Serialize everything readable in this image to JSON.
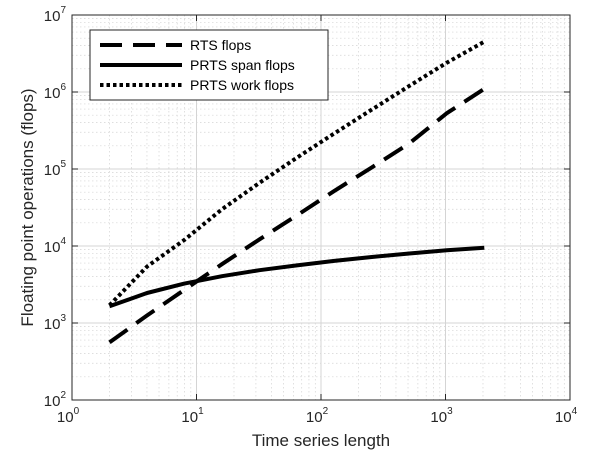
{
  "chart_data": {
    "type": "line",
    "xlabel": "Time series length",
    "ylabel": "Floating point operations (flops)",
    "xscale": "log",
    "yscale": "log",
    "xlim": [
      1,
      10000
    ],
    "ylim": [
      100,
      10000000
    ],
    "grid": true,
    "minor_grid": true,
    "legend_position": "top-left",
    "x_ticks": [
      {
        "base": "10",
        "exp": "0"
      },
      {
        "base": "10",
        "exp": "1"
      },
      {
        "base": "10",
        "exp": "2"
      },
      {
        "base": "10",
        "exp": "3"
      },
      {
        "base": "10",
        "exp": "4"
      }
    ],
    "y_ticks": [
      {
        "base": "10",
        "exp": "2"
      },
      {
        "base": "10",
        "exp": "3"
      },
      {
        "base": "10",
        "exp": "4"
      },
      {
        "base": "10",
        "exp": "5"
      },
      {
        "base": "10",
        "exp": "6"
      },
      {
        "base": "10",
        "exp": "7"
      }
    ],
    "series": [
      {
        "name": "RTS flops",
        "style": "dashed",
        "x": [
          2,
          4,
          8,
          16,
          32,
          64,
          128,
          256,
          512,
          1024,
          2048
        ],
        "y": [
          560,
          1250,
          2700,
          5800,
          12200,
          25000,
          52000,
          105000,
          215000,
          530000,
          1100000
        ]
      },
      {
        "name": "PRTS span flops",
        "style": "solid",
        "x": [
          2,
          4,
          8,
          16,
          32,
          64,
          128,
          256,
          512,
          1024,
          2048
        ],
        "y": [
          1650,
          2450,
          3250,
          4050,
          4850,
          5600,
          6400,
          7200,
          8000,
          8800,
          9500
        ]
      },
      {
        "name": "PRTS work flops",
        "style": "dotted",
        "x": [
          2,
          4,
          8,
          16,
          32,
          64,
          128,
          256,
          512,
          1024,
          2048
        ],
        "y": [
          1700,
          5400,
          12000,
          30000,
          66000,
          140000,
          290000,
          590000,
          1200000,
          2400000,
          4500000
        ]
      }
    ],
    "colors": {
      "line": "#000000",
      "grid": "#d4d4d4",
      "axis": "#262626"
    }
  }
}
